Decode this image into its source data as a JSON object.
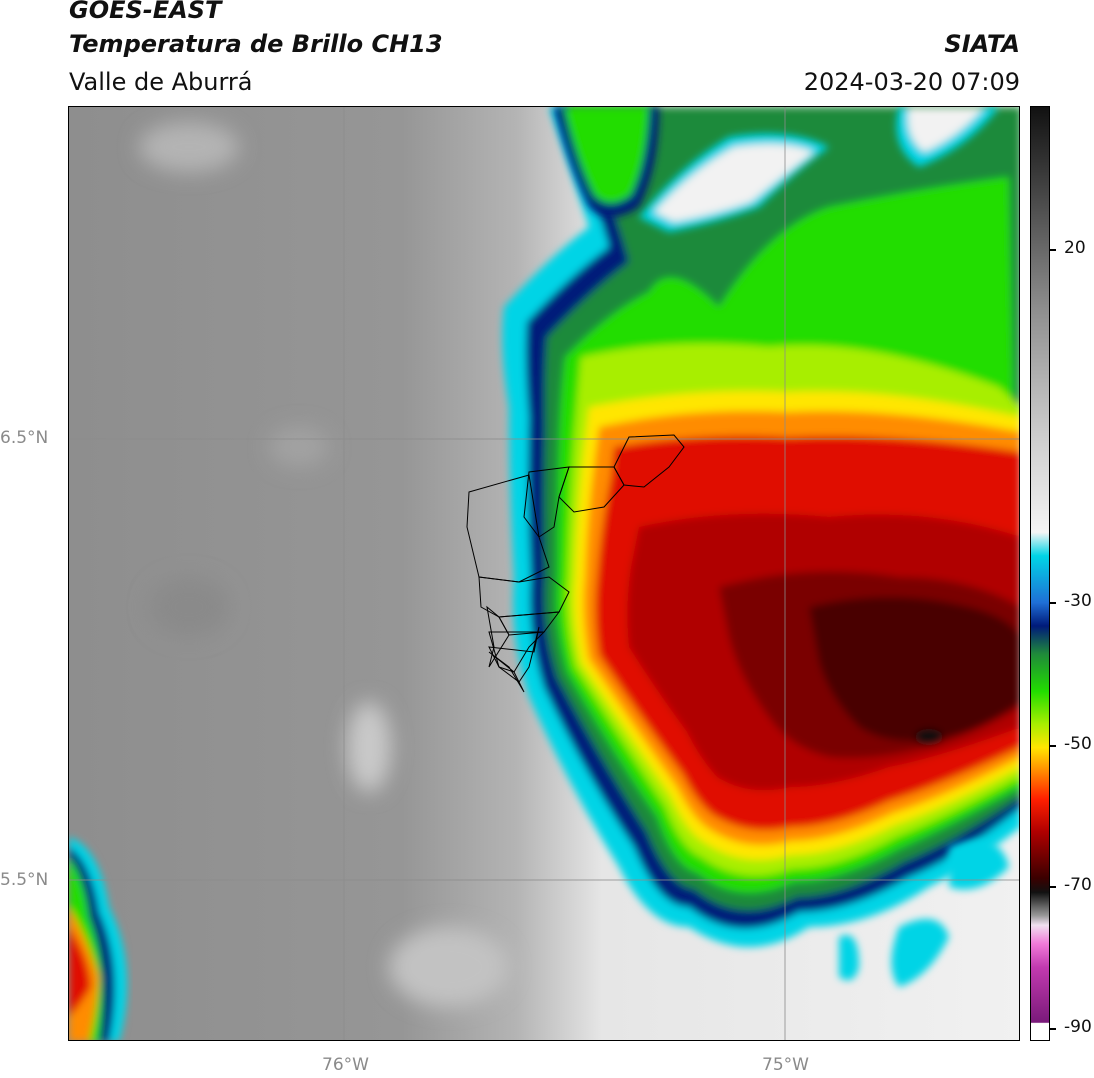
{
  "header": {
    "title_line1": "GOES-EAST",
    "title_line2": "Temperatura de Brillo CH13",
    "subtitle": "Valle de Aburrá",
    "organization": "SIATA",
    "timestamp": "2024-03-20 07:09"
  },
  "map": {
    "lat_labels": [
      "6.5°N",
      "5.5°N"
    ],
    "lon_labels": [
      "76°W",
      "75°W"
    ],
    "gridlines": true,
    "overlay": "Valle de Aburrá municipal boundaries"
  },
  "colorbar": {
    "ticks": [
      {
        "value": 20,
        "label": "20"
      },
      {
        "value": -30,
        "label": "-30"
      },
      {
        "value": -50,
        "label": "-50"
      },
      {
        "value": -70,
        "label": "-70"
      },
      {
        "value": -90,
        "label": "-90"
      }
    ],
    "range": [
      -92,
      40
    ],
    "colors": {
      "cold_white": "#ffffff",
      "magenta": "#c23ab0",
      "black": "#111111",
      "dark_red": "#4a0000",
      "red": "#e01000",
      "orange": "#ff8c00",
      "yellow": "#ffe600",
      "green": "#22dd00",
      "dark_blue": "#001a7a",
      "cyan": "#00d4e6",
      "light_gray": "#f4f4f4",
      "dark_gray": "#222222"
    }
  }
}
